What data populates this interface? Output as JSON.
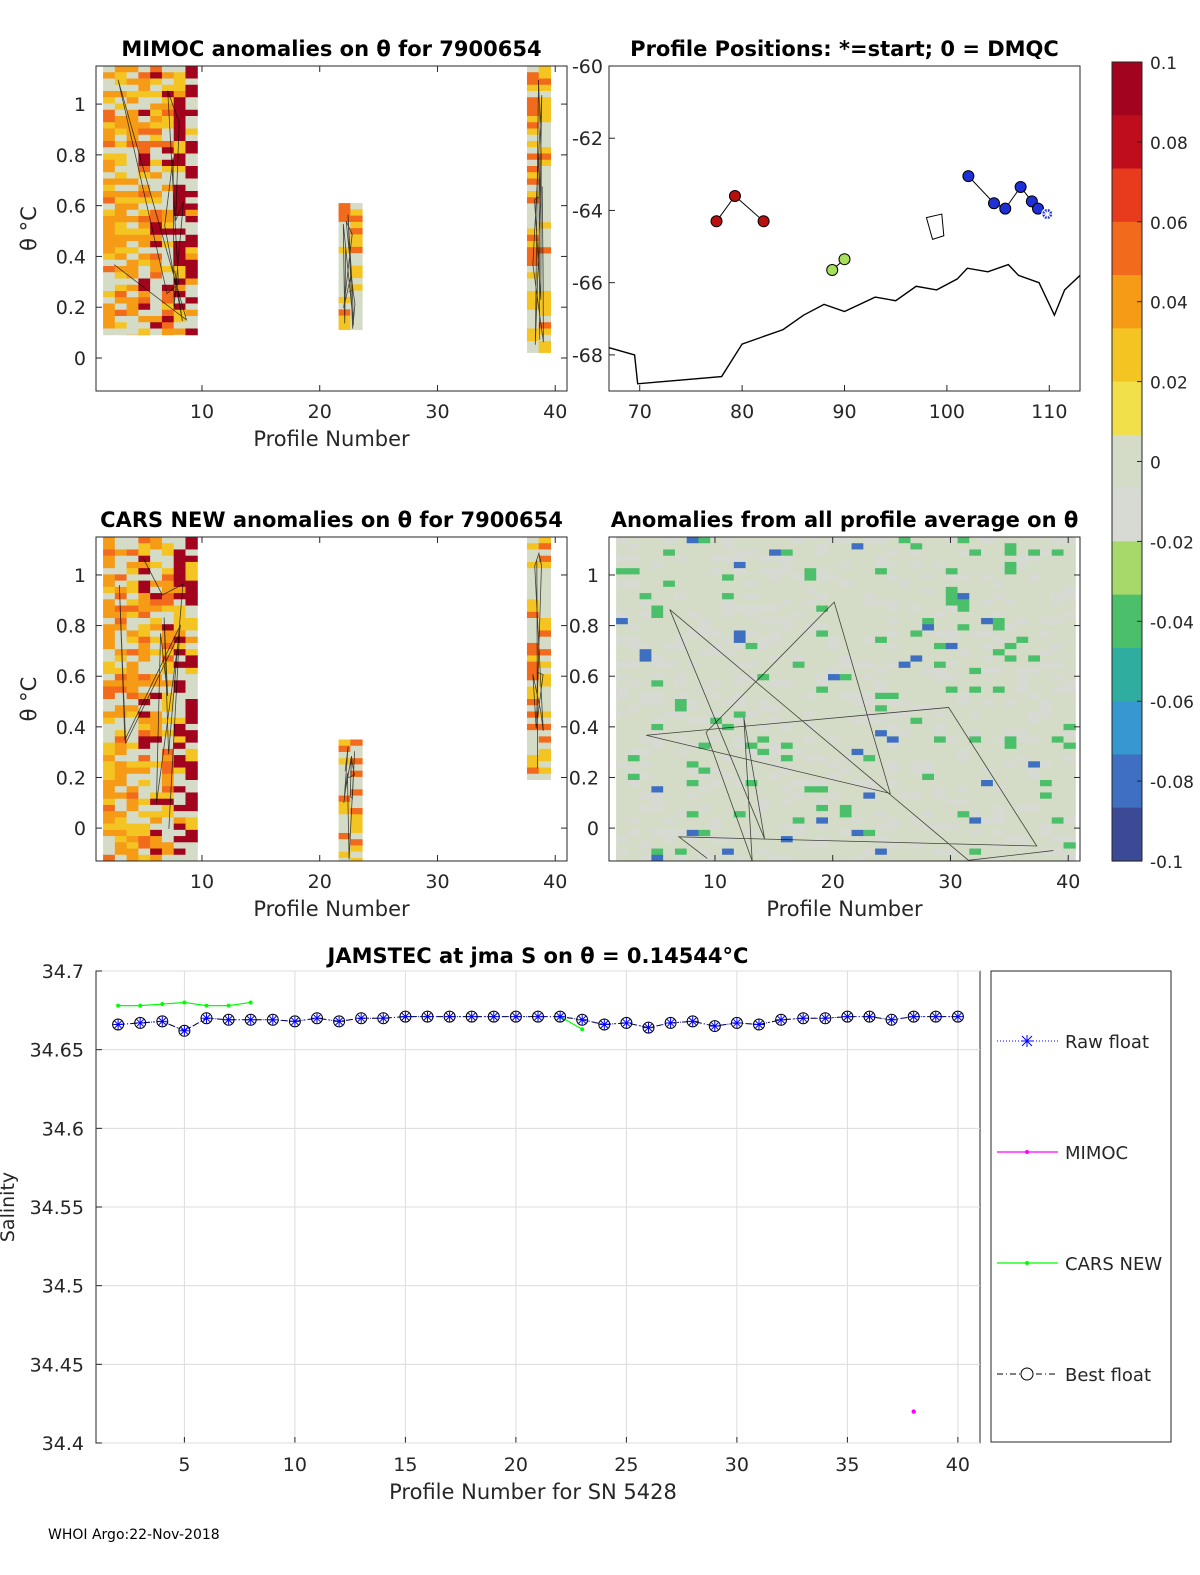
{
  "footer": "WHOI Argo:22-Nov-2018",
  "colorbar": {
    "ticks": [
      "0.1",
      "0.08",
      "0.06",
      "0.04",
      "0.02",
      "0",
      "-0.02",
      "-0.04",
      "-0.06",
      "-0.08",
      "-0.1"
    ],
    "range": [
      -0.1,
      0.1
    ],
    "colormap": [
      "#3b4a94",
      "#3e6fc0",
      "#3797d0",
      "#2fae9f",
      "#4cbf6a",
      "#a6d96a",
      "#d7dad2",
      "#d4dcc8",
      "#f1e049",
      "#f4c522",
      "#f59b16",
      "#f26a1b",
      "#e83a1c",
      "#c00d1c",
      "#a1041c"
    ]
  },
  "chart_data": [
    {
      "id": "mimoc-anom",
      "type": "heatmap",
      "title": "MIMOC anomalies on θ  for 7900654",
      "xlabel": "Profile Number",
      "ylabel": "θ °C",
      "xlim": [
        1,
        41
      ],
      "ylim": [
        -0.13,
        1.15
      ],
      "xticks": [
        "10",
        "20",
        "30",
        "40"
      ],
      "yticks": [
        "0",
        "0.2",
        "0.4",
        "0.6",
        "0.8",
        "1"
      ],
      "data_columns": [
        {
          "profiles": [
            2,
            9
          ],
          "theta_range": [
            0.09,
            1.15
          ],
          "anomaly": "mixed 0 to 0.1"
        },
        {
          "profiles": [
            22,
            23
          ],
          "theta_range": [
            0.11,
            0.61
          ],
          "anomaly": "0 to 0.04"
        },
        {
          "profiles": [
            38,
            39
          ],
          "theta_range": [
            0.02,
            1.15
          ],
          "anomaly": "mixed 0 to 0.1"
        }
      ]
    },
    {
      "id": "positions",
      "type": "scatter",
      "title": "Profile Positions: *=start; 0 = DMQC",
      "xlim": [
        67,
        113
      ],
      "ylim": [
        -69,
        -60
      ],
      "xticks": [
        "70",
        "80",
        "90",
        "100",
        "110"
      ],
      "yticks": [
        "-60",
        "-62",
        "-64",
        "-66",
        "-68"
      ],
      "points": [
        {
          "lon": 77.5,
          "lat": -64.3,
          "color": "#b80f0f"
        },
        {
          "lon": 79.3,
          "lat": -63.6,
          "color": "#b80f0f"
        },
        {
          "lon": 82.1,
          "lat": -64.3,
          "color": "#b80f0f"
        },
        {
          "lon": 88.8,
          "lat": -65.65,
          "color": "#a6e05a"
        },
        {
          "lon": 90.0,
          "lat": -65.35,
          "color": "#a6e05a"
        },
        {
          "lon": 102.1,
          "lat": -63.05,
          "color": "#1f2fd6"
        },
        {
          "lon": 104.6,
          "lat": -63.8,
          "color": "#1f2fd6"
        },
        {
          "lon": 105.7,
          "lat": -63.95,
          "color": "#1f2fd6"
        },
        {
          "lon": 107.2,
          "lat": -63.35,
          "color": "#1f2fd6"
        },
        {
          "lon": 108.3,
          "lat": -63.75,
          "color": "#1f2fd6"
        },
        {
          "lon": 108.9,
          "lat": -63.95,
          "color": "#1f2fd6"
        }
      ],
      "start": {
        "lon": 109.8,
        "lat": -64.1
      }
    },
    {
      "id": "cars-anom",
      "type": "heatmap",
      "title": "CARS NEW anomalies on θ for 7900654",
      "xlabel": "Profile Number",
      "ylabel": "θ °C",
      "xlim": [
        1,
        41
      ],
      "ylim": [
        -0.13,
        1.15
      ],
      "xticks": [
        "10",
        "20",
        "30",
        "40"
      ],
      "yticks": [
        "0",
        "0.2",
        "0.4",
        "0.6",
        "0.8",
        "1"
      ],
      "data_columns": [
        {
          "profiles": [
            2,
            9
          ],
          "theta_range": [
            -0.13,
            1.15
          ],
          "anomaly": "mixed 0 to 0.1"
        },
        {
          "profiles": [
            22,
            23
          ],
          "theta_range": [
            -0.13,
            0.35
          ],
          "anomaly": "0 to 0.06"
        },
        {
          "profiles": [
            38,
            39
          ],
          "theta_range": [
            0.19,
            1.15
          ],
          "anomaly": "mixed 0 to 0.1"
        }
      ]
    },
    {
      "id": "profile-avg-anom",
      "type": "heatmap",
      "title": "Anomalies from all profile average on θ",
      "xlabel": "Profile Number",
      "ylabel": "θ °C",
      "xlim": [
        1,
        41
      ],
      "ylim": [
        -0.13,
        1.15
      ],
      "xticks": [
        "10",
        "20",
        "30",
        "40"
      ],
      "yticks": [
        "0",
        "0.2",
        "0.4",
        "0.6",
        "0.8",
        "1"
      ],
      "data_columns": [
        {
          "profiles": [
            2,
            40
          ],
          "theta_range": [
            -0.13,
            1.15
          ],
          "anomaly": "mostly 0, -0.02 to -0.1 patches"
        }
      ]
    },
    {
      "id": "salinity",
      "type": "line",
      "title": "JAMSTEC at jma S on θ = 0.14544°C",
      "xlabel": "Profile Number for SN 5428",
      "ylabel": "Salinity",
      "xlim": [
        1,
        41
      ],
      "ylim": [
        34.4,
        34.7
      ],
      "xticks": [
        5,
        10,
        15,
        20,
        25,
        30,
        35,
        40
      ],
      "yticks": [
        "34.4",
        "34.45",
        "34.5",
        "34.55",
        "34.6",
        "34.65",
        "34.7"
      ],
      "grid": true,
      "legend_position": "right, outside plot",
      "series": [
        {
          "name": "Raw float",
          "color": "#0000ff",
          "x": [
            2,
            3,
            4,
            5,
            6,
            7,
            8,
            9,
            10,
            11,
            12,
            13,
            14,
            15,
            16,
            17,
            18,
            19,
            20,
            21,
            22,
            23,
            24,
            25,
            26,
            27,
            28,
            29,
            30,
            31,
            32,
            33,
            34,
            35,
            36,
            37,
            38,
            39,
            40
          ],
          "values": [
            34.666,
            34.667,
            34.668,
            34.662,
            34.67,
            34.669,
            34.669,
            34.669,
            34.668,
            34.67,
            34.668,
            34.67,
            34.67,
            34.671,
            34.671,
            34.671,
            34.671,
            34.671,
            34.671,
            34.671,
            34.671,
            34.669,
            34.666,
            34.667,
            34.664,
            34.667,
            34.668,
            34.665,
            34.667,
            34.666,
            34.669,
            34.67,
            34.67,
            34.671,
            34.671,
            34.669,
            34.671,
            34.671,
            34.671
          ]
        },
        {
          "name": "MIMOC",
          "color": "#ff00ff",
          "x": [
            38
          ],
          "values": [
            34.42
          ]
        },
        {
          "name": "CARS NEW",
          "color": "#00ff00",
          "x": [
            2,
            3,
            4,
            5,
            6,
            7,
            8
          ],
          "values": [
            34.678,
            34.678,
            34.679,
            34.68,
            34.678,
            34.678,
            34.68
          ],
          "segment2": {
            "x": [
              22,
              23
            ],
            "values": [
              34.671,
              34.663
            ]
          }
        },
        {
          "name": "Best float",
          "color": "#000000",
          "x": [
            2,
            3,
            4,
            5,
            6,
            7,
            8,
            9,
            10,
            11,
            12,
            13,
            14,
            15,
            16,
            17,
            18,
            19,
            20,
            21,
            22,
            23,
            24,
            25,
            26,
            27,
            28,
            29,
            30,
            31,
            32,
            33,
            34,
            35,
            36,
            37,
            38,
            39,
            40
          ],
          "values": [
            34.666,
            34.667,
            34.668,
            34.662,
            34.67,
            34.669,
            34.669,
            34.669,
            34.668,
            34.67,
            34.668,
            34.67,
            34.67,
            34.671,
            34.671,
            34.671,
            34.671,
            34.671,
            34.671,
            34.671,
            34.671,
            34.669,
            34.666,
            34.667,
            34.664,
            34.667,
            34.668,
            34.665,
            34.667,
            34.666,
            34.669,
            34.67,
            34.67,
            34.671,
            34.671,
            34.669,
            34.671,
            34.671,
            34.671
          ]
        }
      ]
    }
  ]
}
